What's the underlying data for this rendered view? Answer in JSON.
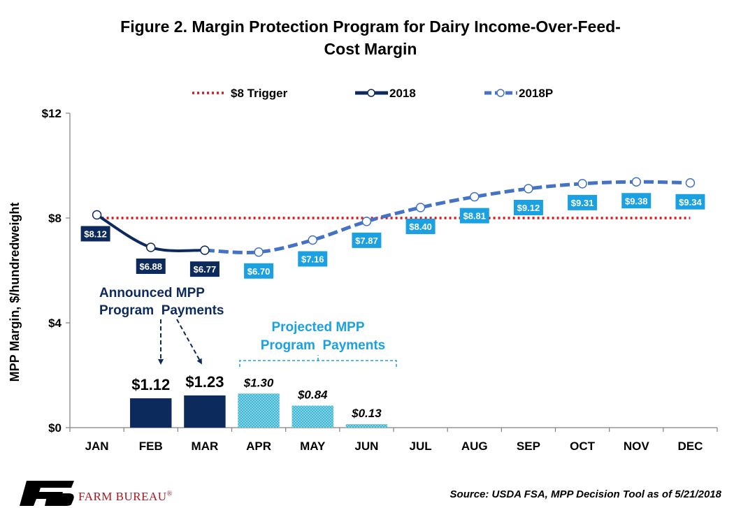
{
  "title_line1": "Figure 2. Margin Protection Program for Dairy Income-Over-Feed-",
  "title_line2": "Cost Margin",
  "source": "Source: USDA FSA, MPP Decision Tool as of 5/21/2018",
  "brand": "FARM BUREAU",
  "brand_mark": "®",
  "colors": {
    "trigger": "#d9151b",
    "actual": "#0d2a5c",
    "projected": "#4472c4",
    "projected_label": "#1ba1e2",
    "payment_actual": "#0d2a5c",
    "payment_projected": "#3fb7d3"
  },
  "chart_data": {
    "type": "line",
    "ylabel": "MPP Margin, $/hundredweight",
    "xlabel": "",
    "ylim": [
      0,
      12
    ],
    "yticks": [
      0,
      4,
      8,
      12
    ],
    "ytick_labels": [
      "$0",
      "$4",
      "$8",
      "$12"
    ],
    "categories": [
      "JAN",
      "FEB",
      "MAR",
      "APR",
      "MAY",
      "JUN",
      "JUL",
      "AUG",
      "SEP",
      "OCT",
      "NOV",
      "DEC"
    ],
    "legend_position": "top",
    "series": [
      {
        "name": "$8 Trigger",
        "style": "dotted",
        "values": [
          8,
          8,
          8,
          8,
          8,
          8,
          8,
          8,
          8,
          8,
          8,
          8
        ]
      },
      {
        "name": "2018",
        "style": "solid",
        "values": [
          8.12,
          6.88,
          6.77,
          null,
          null,
          null,
          null,
          null,
          null,
          null,
          null,
          null
        ],
        "labels": [
          "$8.12",
          "$6.88",
          "$6.77"
        ]
      },
      {
        "name": "2018P",
        "style": "dashed",
        "values": [
          null,
          null,
          6.77,
          6.7,
          7.16,
          7.87,
          8.4,
          8.81,
          9.12,
          9.31,
          9.38,
          9.34
        ],
        "labels": [
          "",
          "",
          "",
          "$6.70",
          "$7.16",
          "$7.87",
          "$8.40",
          "$8.81",
          "$9.12",
          "$9.31",
          "$9.38",
          "$9.34"
        ]
      }
    ],
    "payments": {
      "announced": {
        "label_line1": "Announced MPP",
        "label_line2": "Program  Payments",
        "bars": [
          {
            "month": "FEB",
            "value": 1.12,
            "label": "$1.12"
          },
          {
            "month": "MAR",
            "value": 1.23,
            "label": "$1.23"
          }
        ]
      },
      "projected": {
        "label_line1": "Projected MPP",
        "label_line2": "Program  Payments",
        "bars": [
          {
            "month": "APR",
            "value": 1.3,
            "label": "$1.30"
          },
          {
            "month": "MAY",
            "value": 0.84,
            "label": "$0.84"
          },
          {
            "month": "JUN",
            "value": 0.13,
            "label": "$0.13"
          }
        ]
      }
    }
  }
}
